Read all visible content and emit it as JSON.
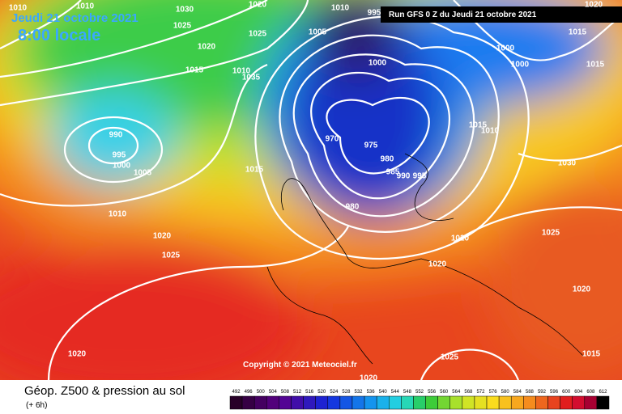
{
  "header": {
    "date": "Jeudi 21 octobre 2021",
    "time": "8:00 locale",
    "run": "Run GFS 0 Z du Jeudi 21 octobre 2021"
  },
  "copyright": "Copyright © 2021 Meteociel.fr",
  "footer": {
    "title": "Géop. Z500 & pression au sol",
    "lead": "(+ 6h)"
  },
  "scale": {
    "labels": [
      492,
      496,
      500,
      504,
      508,
      512,
      516,
      520,
      524,
      528,
      532,
      536,
      540,
      544,
      548,
      552,
      556,
      560,
      564,
      568,
      572,
      576,
      580,
      584,
      588,
      592,
      596,
      600,
      604,
      608,
      612
    ]
  },
  "isobars": [
    1010,
    1010,
    1030,
    1025,
    1020,
    995,
    1010,
    1005,
    1025,
    1020,
    1015,
    1010,
    1035,
    1000,
    1020,
    1015,
    1000,
    1000,
    1015,
    1015,
    1010,
    990,
    995,
    1000,
    1005,
    970,
    975,
    980,
    985,
    990,
    995,
    1015,
    1030,
    980,
    1010,
    1020,
    1025,
    1020,
    1025,
    1020,
    1020,
    1020,
    1025,
    1015,
    1020
  ]
}
